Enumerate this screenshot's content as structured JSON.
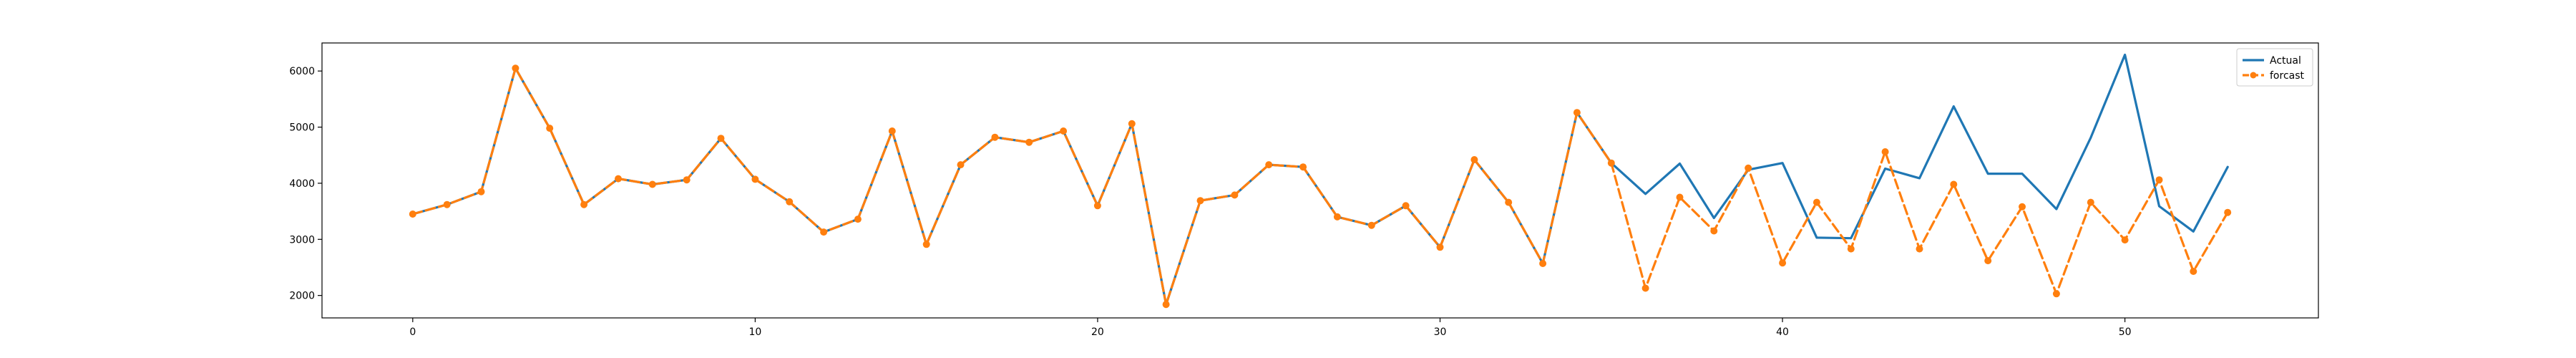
{
  "chart_data": {
    "type": "line",
    "title": "",
    "xlabel": "",
    "ylabel": "",
    "xlim": [
      -2.65,
      55.65
    ],
    "ylim": [
      1600,
      6500
    ],
    "xticks": [
      0,
      10,
      20,
      30,
      40,
      50
    ],
    "yticks": [
      2000,
      3000,
      4000,
      5000,
      6000
    ],
    "grid": false,
    "legend_position": "top-right",
    "series": [
      {
        "name": "Actual",
        "color": "#1f77b4",
        "style": "solid",
        "x": [
          0,
          1,
          2,
          3,
          4,
          5,
          6,
          7,
          8,
          9,
          10,
          11,
          12,
          13,
          14,
          15,
          16,
          17,
          18,
          19,
          20,
          21,
          22,
          23,
          24,
          25,
          26,
          27,
          28,
          29,
          30,
          31,
          32,
          33,
          34,
          35,
          36,
          37,
          38,
          39,
          40,
          41,
          42,
          43,
          44,
          45,
          46,
          47,
          48,
          49,
          50,
          51,
          52,
          53
        ],
        "values": [
          3450,
          3620,
          3850,
          6050,
          4980,
          3620,
          4080,
          3980,
          4060,
          4800,
          4070,
          3670,
          3130,
          3360,
          4930,
          2910,
          4330,
          4820,
          4730,
          4930,
          3600,
          5060,
          1840,
          3690,
          3790,
          4330,
          4290,
          3400,
          3250,
          3600,
          2860,
          4420,
          3660,
          2570,
          5260,
          4360,
          3810,
          4350,
          3380,
          4240,
          4360,
          3030,
          3020,
          4260,
          4090,
          5370,
          4170,
          4170,
          3540,
          4810,
          6290,
          3590,
          3140,
          4290
        ]
      },
      {
        "name": "forcast",
        "color": "#ff7f0e",
        "style": "dashed",
        "marker": "circle",
        "x": [
          0,
          1,
          2,
          3,
          4,
          5,
          6,
          7,
          8,
          9,
          10,
          11,
          12,
          13,
          14,
          15,
          16,
          17,
          18,
          19,
          20,
          21,
          22,
          23,
          24,
          25,
          26,
          27,
          28,
          29,
          30,
          31,
          32,
          33,
          34,
          35,
          36,
          37,
          38,
          39,
          40,
          41,
          42,
          43,
          44,
          45,
          46,
          47,
          48,
          49,
          50,
          51,
          52,
          53
        ],
        "values": [
          3450,
          3620,
          3850,
          6050,
          4980,
          3620,
          4080,
          3980,
          4060,
          4800,
          4070,
          3670,
          3130,
          3360,
          4930,
          2910,
          4330,
          4820,
          4730,
          4930,
          3600,
          5060,
          1840,
          3690,
          3790,
          4330,
          4290,
          3400,
          3250,
          3600,
          2860,
          4420,
          3660,
          2570,
          5260,
          4360,
          2130,
          3750,
          3150,
          4270,
          2580,
          3660,
          2830,
          4560,
          2830,
          3980,
          2620,
          3580,
          2030,
          3660,
          2990,
          4060,
          2430,
          3480
        ]
      }
    ]
  }
}
